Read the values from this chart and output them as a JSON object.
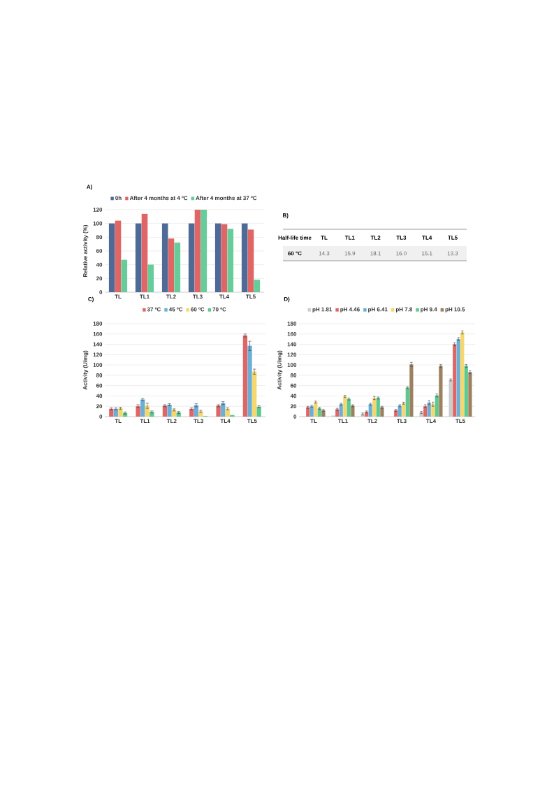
{
  "chart_data": [
    {
      "type": "bar",
      "title": "A)",
      "ylabel": "Relative activity (%)",
      "categories": [
        "TL",
        "TL1",
        "TL2",
        "TL3",
        "TL4",
        "TL5"
      ],
      "ylim": [
        0,
        120
      ],
      "yticks": [
        0,
        20,
        40,
        60,
        80,
        100,
        120
      ],
      "grid": "y",
      "legend": "top",
      "series": [
        {
          "name": "0h",
          "color": "#4f6a96",
          "values": [
            100,
            100,
            100,
            100,
            100,
            100
          ]
        },
        {
          "name": "After 4 months at 4 ºC",
          "color": "#e06666",
          "values": [
            104,
            114,
            78,
            120,
            99,
            91
          ]
        },
        {
          "name": "After 4 months at 37 ºC",
          "color": "#66cc99",
          "values": [
            47,
            40,
            72,
            120,
            92,
            18
          ]
        }
      ]
    },
    {
      "type": "other",
      "title": "B)",
      "xlabel": "Half-life time",
      "ylabel": "60 °C",
      "categories": [
        "TL",
        "TL1",
        "TL2",
        "TL3",
        "TL4",
        "TL5"
      ],
      "value_labels": [
        "14.3",
        "15.9",
        "18.1",
        "16.0",
        "15.1",
        "13.3"
      ]
    },
    {
      "type": "bar",
      "title": "C)",
      "ylabel": "Activity (U/mg)",
      "categories": [
        "TL",
        "TL1",
        "TL2",
        "TL3",
        "TL4",
        "TL5"
      ],
      "ylim": [
        0,
        180
      ],
      "yticks": [
        0,
        20,
        40,
        60,
        80,
        100,
        120,
        140,
        160,
        180
      ],
      "grid": "y",
      "legend": "top",
      "series": [
        {
          "name": "37 ºC",
          "color": "#e06666",
          "values": [
            15,
            20,
            21,
            15,
            21,
            157
          ],
          "errors": [
            2,
            3,
            2,
            2,
            2,
            3
          ]
        },
        {
          "name": "45 ºC",
          "color": "#6baed6",
          "values": [
            15,
            33,
            23,
            22,
            26,
            137
          ],
          "errors": [
            2,
            2,
            2,
            3,
            3,
            9
          ]
        },
        {
          "name": "60 ºC",
          "color": "#f5d76e",
          "values": [
            16,
            21,
            13,
            10,
            15,
            87
          ],
          "errors": [
            2,
            5,
            2,
            2,
            2,
            5
          ]
        },
        {
          "name": "70 ºC",
          "color": "#5cc98f",
          "values": [
            7,
            9,
            8,
            1,
            3,
            19
          ],
          "errors": [
            2,
            2,
            2,
            null,
            null,
            2
          ]
        }
      ]
    },
    {
      "type": "bar",
      "title": "D)",
      "ylabel": "Activity (U/mg)",
      "categories": [
        "TL",
        "TL1",
        "TL2",
        "TL3",
        "TL4",
        "TL5"
      ],
      "ylim": [
        0,
        180
      ],
      "yticks": [
        0,
        20,
        40,
        60,
        80,
        100,
        120,
        140,
        160,
        180
      ],
      "grid": "y",
      "legend": "top",
      "series": [
        {
          "name": "pH 1.81",
          "color": "#cccccc",
          "values": [
            0,
            2,
            5,
            null,
            8,
            71
          ],
          "errors": [
            null,
            null,
            2,
            null,
            2,
            2
          ]
        },
        {
          "name": "pH 4.46",
          "color": "#e06666",
          "values": [
            18,
            14,
            9,
            12,
            20,
            140
          ],
          "errors": [
            2,
            2,
            2,
            2,
            3,
            3
          ]
        },
        {
          "name": "pH 6.41",
          "color": "#6baed6",
          "values": [
            20,
            24,
            24,
            21,
            27,
            150
          ],
          "errors": [
            2,
            2,
            2,
            2,
            4,
            3
          ]
        },
        {
          "name": "pH 7.8",
          "color": "#f5d76e",
          "values": [
            28,
            39,
            36,
            26,
            24,
            163
          ],
          "errors": [
            2,
            2,
            3,
            2,
            4,
            3
          ]
        },
        {
          "name": "pH 9.4",
          "color": "#5cc98f",
          "values": [
            16,
            34,
            36,
            56,
            41,
            98
          ],
          "errors": [
            2,
            2,
            2,
            2,
            3,
            3
          ]
        },
        {
          "name": "pH 10.5",
          "color": "#9c8060",
          "values": [
            12,
            21,
            18,
            101,
            98,
            86
          ],
          "errors": [
            2,
            2,
            2,
            4,
            3,
            3
          ]
        }
      ]
    }
  ]
}
